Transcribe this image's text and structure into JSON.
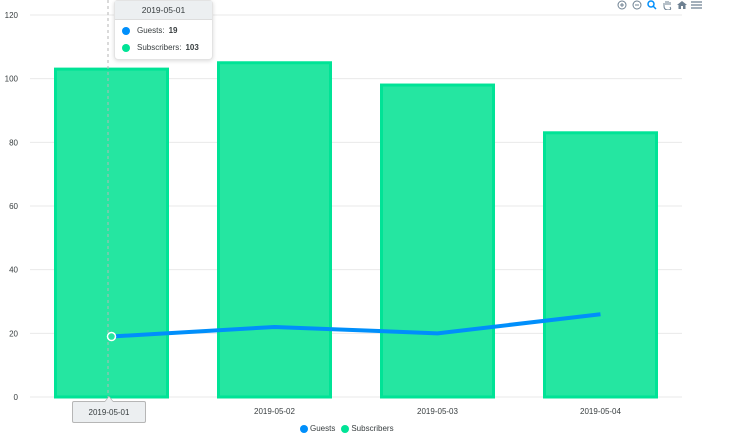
{
  "chart_data": {
    "type": "bar+line",
    "title": "",
    "categories": [
      "2019-05-01",
      "2019-05-02",
      "2019-05-03",
      "2019-05-04"
    ],
    "series": [
      {
        "name": "Guests",
        "type": "line",
        "color": "#008FFB",
        "values": [
          19,
          22,
          20,
          26
        ]
      },
      {
        "name": "Subscribers",
        "type": "bar",
        "color": "#00E396",
        "values": [
          103,
          105,
          98,
          83
        ]
      }
    ],
    "yticks": [
      0,
      20,
      40,
      60,
      80,
      100,
      120
    ],
    "ylim": [
      0,
      120
    ],
    "xlabel": "",
    "ylabel": "",
    "grid": true,
    "legend_position": "bottom"
  },
  "tooltip": {
    "title": "2019-05-01",
    "rows": [
      {
        "label": "Guests:",
        "value": "19",
        "color": "#008FFB"
      },
      {
        "label": "Subscribers:",
        "value": "103",
        "color": "#00E396"
      }
    ]
  },
  "xaxis_tooltip": "2019-05-01",
  "legend": [
    {
      "label": "Guests",
      "color": "#008FFB"
    },
    {
      "label": "Subscribers",
      "color": "#00E396"
    }
  ],
  "toolbar": [
    "zoom-in-icon",
    "zoom-out-icon",
    "zoom-select-icon",
    "pan-icon",
    "reset-home-icon",
    "menu-icon"
  ]
}
